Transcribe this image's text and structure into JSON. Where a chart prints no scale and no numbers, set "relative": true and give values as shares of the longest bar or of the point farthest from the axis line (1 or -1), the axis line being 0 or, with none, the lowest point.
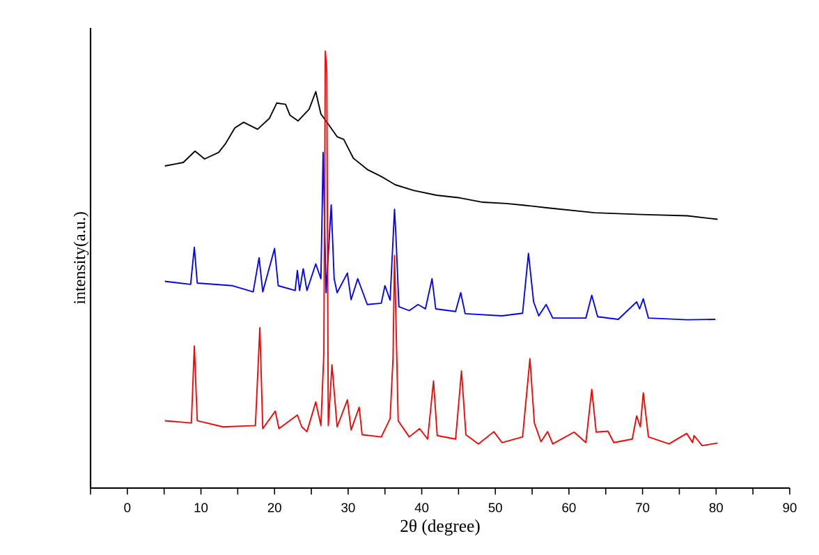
{
  "chart_data": {
    "type": "line",
    "relative": true,
    "xlabel": "2θ (degree)",
    "ylabel": "intensity(a.u.)",
    "xlim": [
      -5,
      90
    ],
    "xticks": [
      {
        "value": -5,
        "label": null
      },
      0,
      {
        "value": 5,
        "label": null
      },
      10,
      {
        "value": 15,
        "label": null
      },
      20,
      {
        "value": 25,
        "label": null
      },
      30,
      {
        "value": 35,
        "label": null
      },
      40,
      {
        "value": 45,
        "label": null
      },
      50,
      {
        "value": 55,
        "label": null
      },
      60,
      {
        "value": 65,
        "label": null
      },
      70,
      {
        "value": 75,
        "label": null
      },
      80,
      {
        "value": 85,
        "label": null
      },
      90
    ],
    "series": [
      {
        "color": "#000000",
        "x": [
          5.1,
          7.6,
          9.2,
          10.5,
          12.4,
          13.3,
          14.6,
          15.8,
          17.7,
          19.3,
          20.3,
          21.5,
          22.1,
          23.2,
          24.7,
          25.6,
          26.3,
          27.5,
          28.5,
          29.4,
          30.7,
          32.6,
          34.5,
          36.4,
          38.9,
          42.0,
          45.2,
          48.3,
          51.5,
          54.0,
          57.2,
          63.5,
          69.8,
          76.1,
          80.2
        ],
        "values": [
          0.737,
          0.745,
          0.771,
          0.753,
          0.768,
          0.787,
          0.824,
          0.837,
          0.821,
          0.846,
          0.881,
          0.878,
          0.853,
          0.84,
          0.867,
          0.907,
          0.856,
          0.828,
          0.804,
          0.798,
          0.755,
          0.729,
          0.713,
          0.694,
          0.681,
          0.67,
          0.664,
          0.654,
          0.651,
          0.647,
          0.641,
          0.63,
          0.626,
          0.623,
          0.615
        ]
      },
      {
        "color": "#0000ff",
        "x": [
          5.1,
          8.6,
          9.1,
          9.5,
          14.3,
          17.1,
          17.9,
          18.4,
          20.0,
          20.5,
          22.8,
          23.1,
          23.4,
          23.9,
          24.4,
          25.6,
          26.3,
          26.5,
          26.6,
          27.0,
          27.7,
          28.1,
          28.5,
          29.9,
          30.4,
          31.3,
          32.6,
          34.5,
          35.0,
          35.7,
          36.3,
          36.5,
          36.9,
          38.3,
          39.5,
          40.5,
          41.4,
          41.9,
          44.6,
          45.3,
          45.9,
          50.9,
          53.7,
          54.5,
          55.2,
          55.9,
          56.9,
          57.8,
          62.3,
          63.1,
          63.9,
          66.7,
          69.2,
          69.6,
          70.1,
          70.8,
          76.1,
          79.9
        ],
        "values": [
          0.473,
          0.466,
          0.551,
          0.469,
          0.463,
          0.449,
          0.527,
          0.449,
          0.548,
          0.463,
          0.452,
          0.498,
          0.452,
          0.502,
          0.452,
          0.513,
          0.479,
          0.665,
          0.768,
          0.447,
          0.648,
          0.479,
          0.447,
          0.492,
          0.431,
          0.479,
          0.42,
          0.423,
          0.463,
          0.43,
          0.638,
          0.574,
          0.415,
          0.406,
          0.42,
          0.41,
          0.479,
          0.41,
          0.404,
          0.447,
          0.399,
          0.394,
          0.4,
          0.537,
          0.426,
          0.394,
          0.42,
          0.389,
          0.389,
          0.441,
          0.392,
          0.386,
          0.426,
          0.41,
          0.433,
          0.389,
          0.385,
          0.386
        ]
      },
      {
        "color": "#ff0000",
        "x": [
          5.1,
          8.7,
          9.1,
          9.5,
          13.0,
          17.4,
          18.0,
          18.4,
          20.1,
          20.6,
          23.1,
          23.7,
          24.4,
          25.6,
          26.3,
          26.7,
          26.9,
          27.1,
          27.3,
          27.8,
          28.5,
          29.9,
          30.4,
          31.5,
          31.9,
          34.5,
          35.7,
          36.1,
          36.3,
          36.8,
          38.3,
          39.7,
          40.8,
          41.6,
          42.1,
          44.6,
          45.4,
          46.0,
          47.7,
          49.8,
          50.9,
          53.7,
          54.7,
          55.3,
          56.2,
          57.1,
          57.8,
          60.7,
          62.3,
          63.1,
          63.7,
          65.3,
          66.1,
          68.6,
          69.2,
          69.7,
          70.1,
          70.8,
          73.6,
          76.0,
          76.8,
          77.0,
          78.1,
          80.2
        ],
        "values": [
          0.154,
          0.149,
          0.325,
          0.154,
          0.14,
          0.143,
          0.367,
          0.136,
          0.176,
          0.136,
          0.167,
          0.14,
          0.129,
          0.197,
          0.143,
          0.309,
          1.0,
          0.952,
          0.143,
          0.282,
          0.14,
          0.202,
          0.133,
          0.185,
          0.122,
          0.117,
          0.159,
          0.298,
          0.532,
          0.154,
          0.117,
          0.136,
          0.112,
          0.245,
          0.12,
          0.112,
          0.268,
          0.122,
          0.101,
          0.129,
          0.104,
          0.117,
          0.296,
          0.149,
          0.106,
          0.129,
          0.101,
          0.128,
          0.104,
          0.226,
          0.128,
          0.13,
          0.104,
          0.112,
          0.165,
          0.14,
          0.218,
          0.117,
          0.101,
          0.125,
          0.104,
          0.12,
          0.097,
          0.103
        ]
      }
    ]
  }
}
